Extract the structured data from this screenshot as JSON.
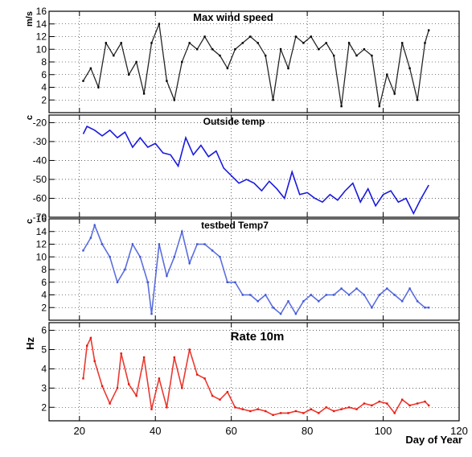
{
  "chart_data": [
    {
      "type": "scatter",
      "title": "Max wind speed",
      "ylabel": "m/s",
      "xlim": [
        12,
        120
      ],
      "ylim": [
        0,
        16
      ],
      "yticks": [
        2,
        4,
        6,
        8,
        10,
        12,
        14,
        16
      ],
      "grid": true,
      "color": "#000000",
      "series": [
        {
          "x": [
            21,
            23,
            25,
            27,
            29,
            31,
            33,
            35,
            37,
            39,
            41,
            43,
            45,
            47,
            49,
            51,
            53,
            55,
            57,
            59,
            61,
            63,
            65,
            67,
            69,
            71,
            73,
            75,
            77,
            79,
            81,
            83,
            85,
            87,
            89,
            91,
            93,
            95,
            97,
            99,
            101,
            103,
            105,
            107,
            109,
            111,
            112
          ],
          "y": [
            5,
            7,
            4,
            11,
            9,
            11,
            6,
            8,
            3,
            11,
            14,
            5,
            2,
            8,
            11,
            10,
            12,
            10,
            9,
            7,
            10,
            11,
            12,
            11,
            9,
            2,
            10,
            7,
            12,
            11,
            12,
            10,
            11,
            9,
            1,
            11,
            9,
            10,
            9,
            1,
            6,
            3,
            11,
            7,
            2,
            11,
            13
          ]
        }
      ]
    },
    {
      "type": "line",
      "title": "Outside temp",
      "ylabel": "c",
      "xlim": [
        12,
        120
      ],
      "ylim": [
        -70,
        -16
      ],
      "yticks": [
        -70,
        -60,
        -50,
        -40,
        -30,
        -20
      ],
      "grid": true,
      "color": "#1a1adf",
      "series": [
        {
          "x": [
            21,
            22,
            24,
            26,
            28,
            30,
            32,
            34,
            36,
            38,
            40,
            42,
            44,
            46,
            48,
            50,
            52,
            54,
            56,
            58,
            60,
            62,
            64,
            66,
            68,
            70,
            72,
            74,
            76,
            78,
            80,
            82,
            84,
            86,
            88,
            90,
            92,
            94,
            96,
            98,
            100,
            102,
            104,
            106,
            108,
            110,
            112
          ],
          "y": [
            -26,
            -22,
            -24,
            -27,
            -24,
            -28,
            -25,
            -33,
            -28,
            -33,
            -31,
            -36,
            -37,
            -43,
            -28,
            -37,
            -32,
            -38,
            -35,
            -44,
            -48,
            -52,
            -50,
            -52,
            -56,
            -51,
            -55,
            -60,
            -46,
            -58,
            -57,
            -60,
            -62,
            -58,
            -61,
            -56,
            -52,
            -62,
            -55,
            -64,
            -58,
            -56,
            -62,
            -60,
            -68,
            -60,
            -53
          ]
        }
      ]
    },
    {
      "type": "scatter",
      "title": "testbed Temp7",
      "ylabel": "c",
      "xlim": [
        12,
        120
      ],
      "ylim": [
        0,
        16
      ],
      "yticks": [
        2,
        4,
        6,
        8,
        10,
        12,
        14,
        16
      ],
      "grid": true,
      "color": "#3f55d8",
      "series": [
        {
          "x": [
            21,
            23,
            24,
            26,
            28,
            30,
            32,
            34,
            36,
            38,
            39,
            41,
            43,
            45,
            47,
            49,
            51,
            53,
            55,
            57,
            59,
            61,
            63,
            65,
            67,
            69,
            71,
            73,
            75,
            77,
            79,
            81,
            83,
            85,
            87,
            89,
            91,
            93,
            95,
            97,
            99,
            101,
            103,
            105,
            107,
            109,
            111,
            112
          ],
          "y": [
            11,
            13,
            15,
            12,
            10,
            6,
            8,
            12,
            10,
            6,
            1,
            12,
            7,
            10,
            14,
            9,
            12,
            12,
            11,
            10,
            6,
            6,
            4,
            4,
            3,
            4,
            2,
            1,
            3,
            1,
            3,
            4,
            3,
            4,
            4,
            5,
            4,
            5,
            4,
            2,
            4,
            5,
            4,
            3,
            5,
            3,
            2,
            2
          ]
        }
      ]
    },
    {
      "type": "scatter",
      "title": "Rate 10m",
      "ylabel": "Hz",
      "xlabel": "Day of Year",
      "xlim": [
        12,
        120
      ],
      "ylim": [
        1.3,
        6.4
      ],
      "yticks": [
        2,
        3,
        4,
        5,
        6
      ],
      "xticks": [
        20,
        40,
        60,
        80,
        100,
        120
      ],
      "grid": true,
      "color": "#e8160c",
      "series": [
        {
          "x": [
            21,
            22,
            23,
            24,
            26,
            28,
            30,
            31,
            33,
            35,
            37,
            39,
            41,
            43,
            45,
            47,
            49,
            51,
            53,
            55,
            57,
            59,
            61,
            63,
            65,
            67,
            69,
            71,
            73,
            75,
            77,
            79,
            81,
            83,
            85,
            87,
            89,
            91,
            93,
            95,
            97,
            99,
            101,
            103,
            105,
            107,
            109,
            111,
            112
          ],
          "y": [
            3.5,
            5.2,
            5.6,
            4.4,
            3.1,
            2.2,
            3.0,
            4.8,
            3.2,
            2.6,
            4.6,
            1.9,
            3.5,
            2.0,
            4.6,
            3.0,
            5.0,
            3.7,
            3.5,
            2.6,
            2.4,
            2.8,
            2.0,
            1.9,
            1.8,
            1.9,
            1.8,
            1.6,
            1.7,
            1.7,
            1.8,
            1.7,
            1.9,
            1.7,
            2.0,
            1.8,
            1.9,
            2.0,
            1.9,
            2.2,
            2.1,
            2.3,
            2.2,
            1.7,
            2.4,
            2.1,
            2.2,
            2.3,
            2.1
          ]
        }
      ]
    }
  ]
}
